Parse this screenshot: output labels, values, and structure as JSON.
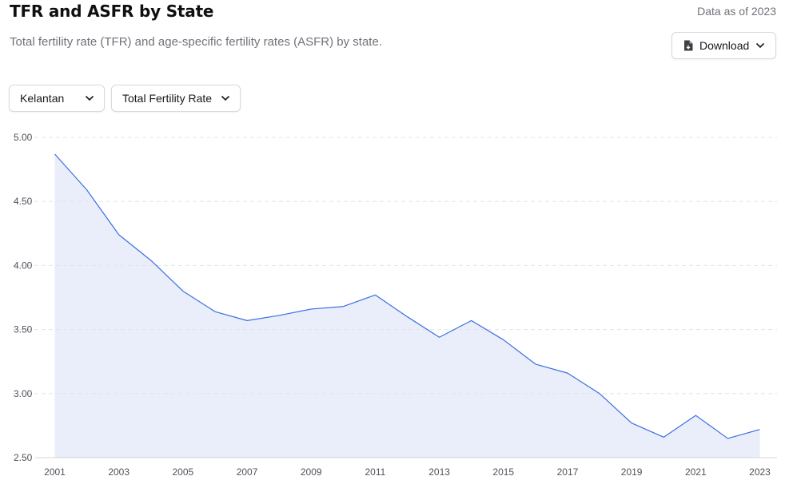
{
  "header": {
    "title": "TFR and ASFR by State",
    "as_of": "Data as of 2023",
    "description": "Total fertility rate (TFR) and age-specific fertility rates (ASFR) by state."
  },
  "controls": {
    "download_label": "Download",
    "state_selected": "Kelantan",
    "metric_selected": "Total Fertility Rate"
  },
  "colors": {
    "line": "#3b6fe0",
    "area": "#eaeefb",
    "grid": "#e4e4e7"
  },
  "chart_data": {
    "type": "area",
    "title": "",
    "xlabel": "",
    "ylabel": "",
    "x": [
      2001,
      2002,
      2003,
      2004,
      2005,
      2006,
      2007,
      2008,
      2009,
      2010,
      2011,
      2012,
      2013,
      2014,
      2015,
      2016,
      2017,
      2018,
      2019,
      2020,
      2021,
      2022,
      2023
    ],
    "series": [
      {
        "name": "Kelantan - Total Fertility Rate",
        "values": [
          4.87,
          4.59,
          4.24,
          4.04,
          3.8,
          3.64,
          3.57,
          3.61,
          3.66,
          3.68,
          3.77,
          3.6,
          3.44,
          3.57,
          3.42,
          3.23,
          3.16,
          3.0,
          2.77,
          2.66,
          2.83,
          2.65,
          2.72
        ]
      }
    ],
    "ylim": [
      2.5,
      5.0
    ],
    "y_ticks": [
      "2.50",
      "3.00",
      "3.50",
      "4.00",
      "4.50",
      "5.00"
    ],
    "x_ticks": [
      "2001",
      "2003",
      "2005",
      "2007",
      "2009",
      "2011",
      "2013",
      "2015",
      "2017",
      "2019",
      "2021",
      "2023"
    ],
    "grid": true
  }
}
